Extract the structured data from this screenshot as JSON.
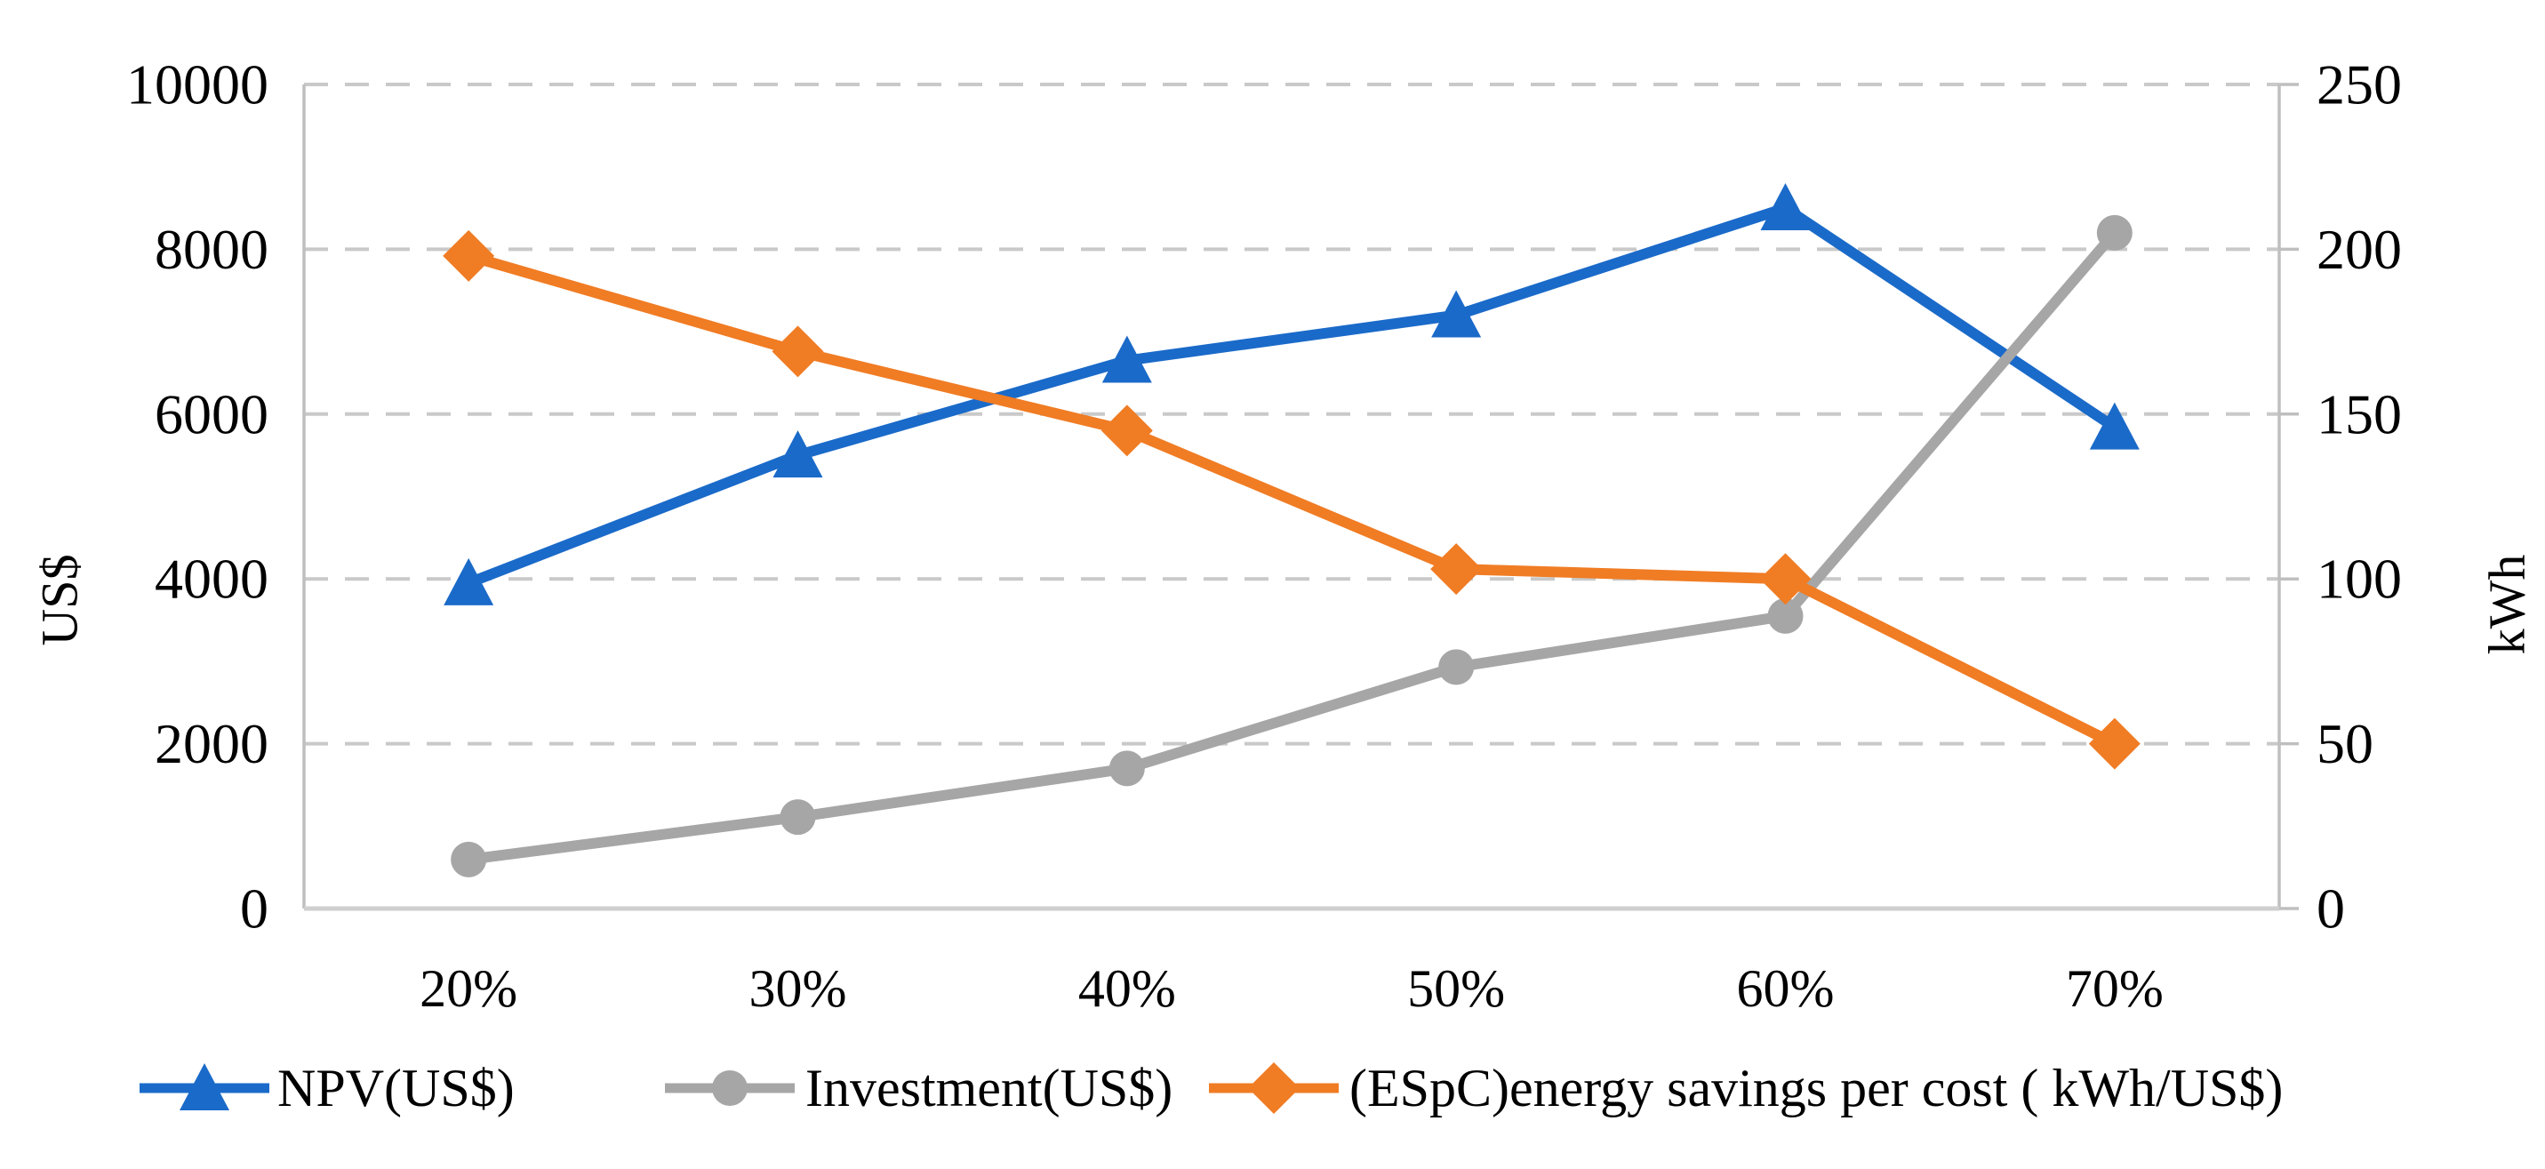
{
  "figure": {
    "background": "#FFFFFF"
  },
  "chart_data": {
    "type": "line",
    "categories": [
      "20%",
      "30%",
      "40%",
      "50%",
      "60%",
      "70%"
    ],
    "series": [
      {
        "id": "npv",
        "name": "NPV(US$)",
        "axis": "left",
        "marker": "triangle",
        "color": "#1A6AC9",
        "values": [
          3950,
          5500,
          6650,
          7200,
          8500,
          5840
        ]
      },
      {
        "id": "investment",
        "name": "Investment(US$)",
        "axis": "left",
        "marker": "circle",
        "color": "#A6A6A6",
        "values": [
          595,
          1110,
          1700,
          2930,
          3550,
          8200
        ]
      },
      {
        "id": "espc",
        "name": "(ESpC)energy savings per cost ( kWh/US$)",
        "axis": "right",
        "marker": "diamond",
        "color": "#F07C24",
        "values": [
          198,
          169,
          145,
          103,
          100,
          50
        ]
      }
    ],
    "left_axis": {
      "title": "US$",
      "min": 0,
      "max": 10000,
      "step": 2000,
      "tick_labels": [
        "0",
        "2000",
        "4000",
        "6000",
        "8000",
        "10000"
      ]
    },
    "right_axis": {
      "title": "kWh",
      "min": 0,
      "max": 250,
      "step": 50,
      "tick_labels": [
        "0",
        "50",
        "100",
        "150",
        "200",
        "250"
      ]
    },
    "x_axis": {
      "tick_labels": [
        "20%",
        "30%",
        "40%",
        "50%",
        "60%",
        "70%"
      ]
    },
    "legend": {
      "position": "bottom",
      "entries": [
        "NPV(US$)",
        "Investment(US$)",
        "(ESpC)energy savings per cost ( kWh/US$)"
      ]
    },
    "grid": {
      "horizontal": true,
      "style": "dashed",
      "color": "#C9C9C9"
    },
    "axis_line_color": "#BFBFBF",
    "bottom_axis_color": "#CFCFCF"
  }
}
